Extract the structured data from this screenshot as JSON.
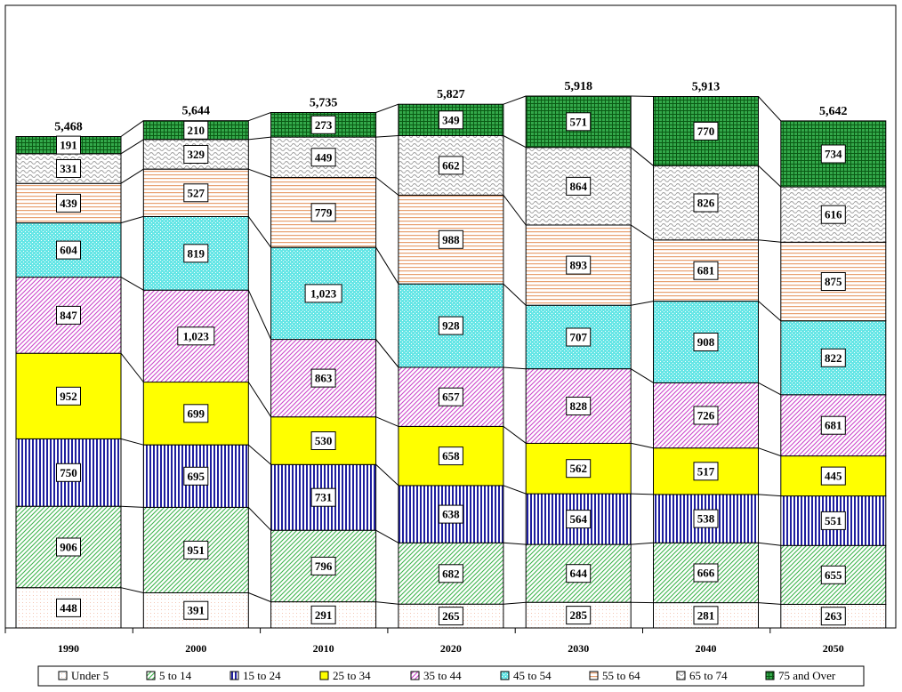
{
  "chart_data": {
    "type": "bar",
    "stacked": true,
    "categories": [
      "1990",
      "2000",
      "2010",
      "2020",
      "2030",
      "2040",
      "2050"
    ],
    "totals": [
      "5,468",
      "5,644",
      "5,735",
      "5,827",
      "5,918",
      "5,913",
      "5,642"
    ],
    "series": [
      {
        "name": "Under 5",
        "color": "#f4c6b4",
        "pattern": "dots",
        "values": [
          448,
          391,
          291,
          265,
          285,
          281,
          263
        ],
        "labels": [
          "448",
          "391",
          "291",
          "265",
          "285",
          "281",
          "263"
        ]
      },
      {
        "name": "5 to 14",
        "color": "#3cb44b",
        "pattern": "diag",
        "values": [
          906,
          951,
          796,
          682,
          644,
          666,
          655
        ],
        "labels": [
          "906",
          "951",
          "796",
          "682",
          "644",
          "666",
          "655"
        ]
      },
      {
        "name": "15 to 24",
        "color": "#1f1f9f",
        "pattern": "vlines",
        "values": [
          750,
          695,
          731,
          638,
          564,
          538,
          551
        ],
        "labels": [
          "750",
          "695",
          "731",
          "638",
          "564",
          "538",
          "551"
        ]
      },
      {
        "name": "25 to 34",
        "color": "#ffff00",
        "pattern": "solid",
        "values": [
          952,
          699,
          530,
          658,
          562,
          517,
          445
        ],
        "labels": [
          "952",
          "699",
          "530",
          "658",
          "562",
          "517",
          "445"
        ]
      },
      {
        "name": "35 to 44",
        "color": "#cc44cc",
        "pattern": "diag",
        "values": [
          847,
          1023,
          863,
          657,
          828,
          726,
          681
        ],
        "labels": [
          "847",
          "1,023",
          "863",
          "657",
          "828",
          "726",
          "681"
        ]
      },
      {
        "name": "45 to 54",
        "color": "#66e6e6",
        "pattern": "bigdots",
        "values": [
          604,
          819,
          1023,
          928,
          707,
          908,
          822
        ],
        "labels": [
          "604",
          "819",
          "1,023",
          "928",
          "707",
          "908",
          "822"
        ]
      },
      {
        "name": "55 to 64",
        "color": "#e8a070",
        "pattern": "hlines",
        "values": [
          439,
          527,
          779,
          988,
          893,
          681,
          875
        ],
        "labels": [
          "439",
          "527",
          "779",
          "988",
          "893",
          "681",
          "875"
        ]
      },
      {
        "name": "65 to 74",
        "color": "#a0a0a0",
        "pattern": "waves",
        "values": [
          331,
          329,
          449,
          662,
          864,
          826,
          616
        ],
        "labels": [
          "331",
          "329",
          "449",
          "662",
          "864",
          "826",
          "616"
        ]
      },
      {
        "name": "75 and Over",
        "color": "#33a84a",
        "pattern": "grid",
        "values": [
          191,
          210,
          273,
          349,
          571,
          770,
          734
        ],
        "labels": [
          "191",
          "210",
          "273",
          "349",
          "571",
          "770",
          "734"
        ]
      }
    ],
    "ylim": [
      0,
      6500
    ],
    "grid": false,
    "legend_position": "bottom"
  }
}
